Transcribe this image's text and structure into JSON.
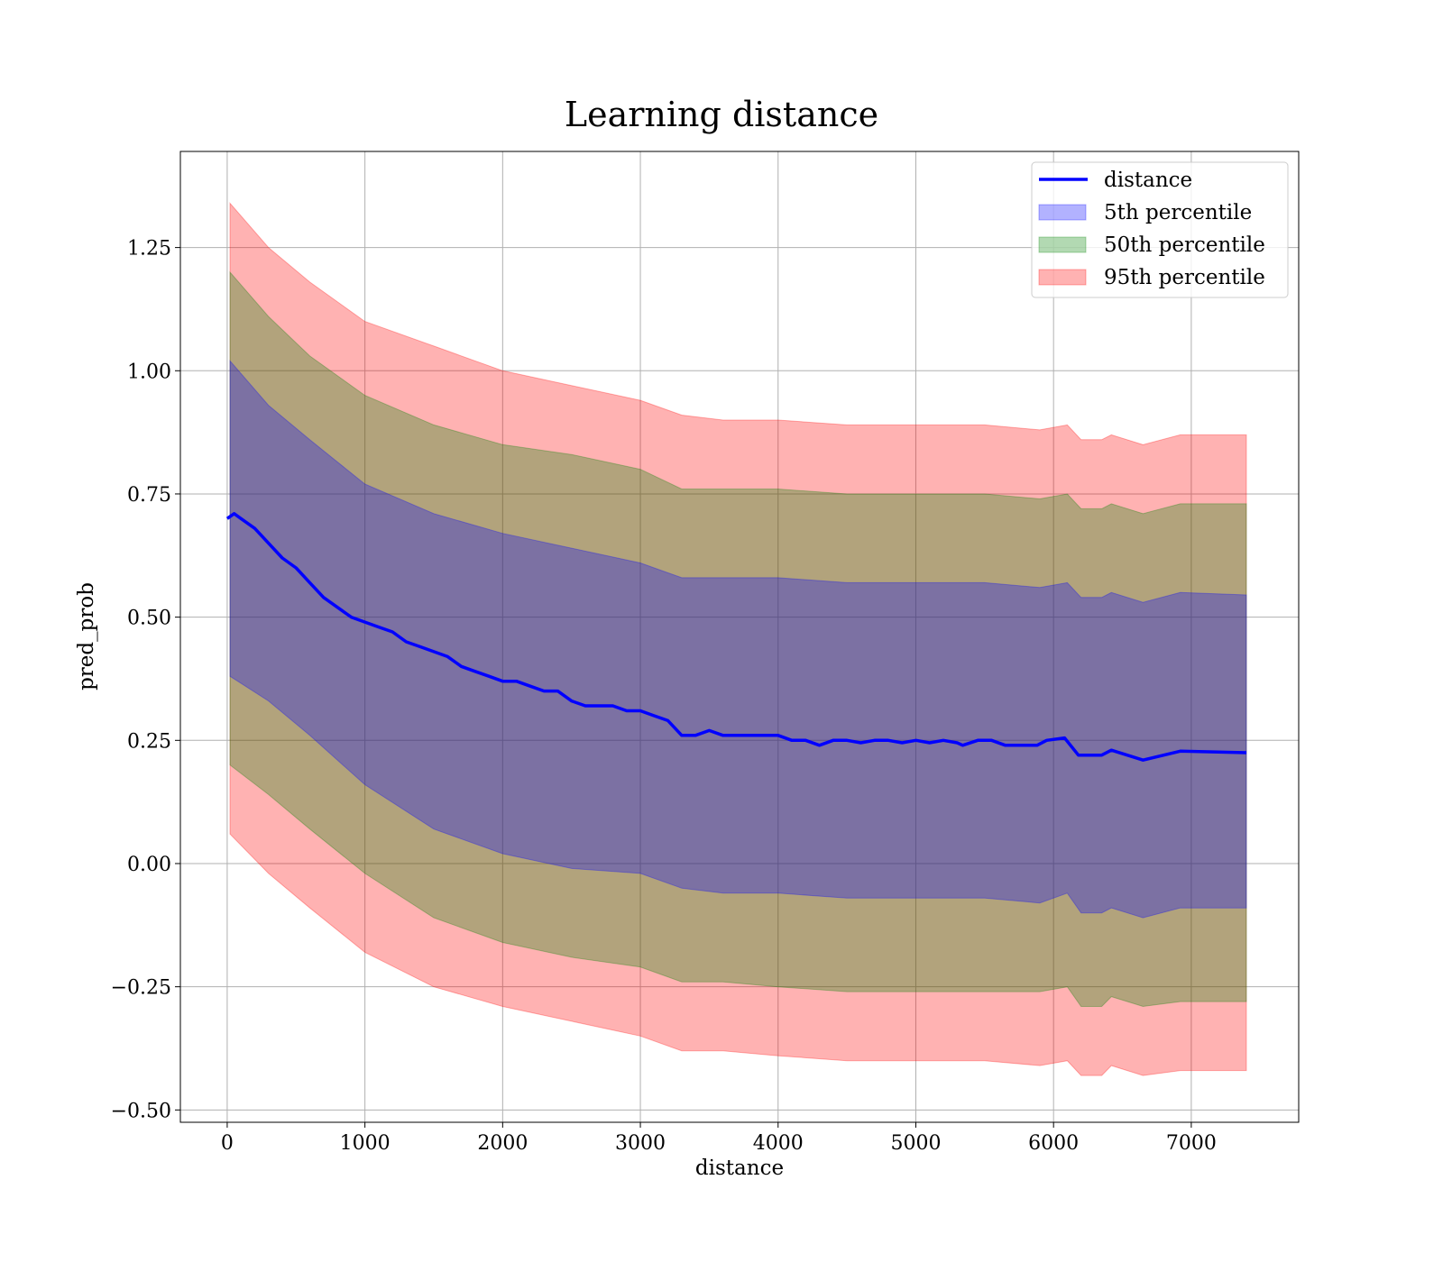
{
  "chart_data": {
    "type": "line",
    "title": "Learning distance",
    "xlabel": "distance",
    "ylabel": "pred_prob",
    "xlim": [
      -340,
      7780
    ],
    "ylim": [
      -0.525,
      1.445
    ],
    "xticks": [
      0,
      1000,
      2000,
      3000,
      4000,
      5000,
      6000,
      7000
    ],
    "xtick_labels": [
      "0",
      "1000",
      "2000",
      "3000",
      "4000",
      "5000",
      "6000",
      "7000"
    ],
    "yticks": [
      -0.5,
      -0.25,
      0.0,
      0.25,
      0.5,
      0.75,
      1.0,
      1.25
    ],
    "ytick_labels": [
      "−0.50",
      "−0.25",
      "0.00",
      "0.25",
      "0.50",
      "0.75",
      "1.00",
      "1.25"
    ],
    "grid": true,
    "legend_position": "top-right",
    "colors": {
      "line": "#0000ff",
      "band_5th": "#0000ff",
      "band_50th": "#008000",
      "band_95th": "#ff0000"
    },
    "series": [
      {
        "name": "distance",
        "kind": "line",
        "x": [
          0,
          50,
          100,
          200,
          300,
          400,
          500,
          600,
          700,
          800,
          900,
          1000,
          1100,
          1200,
          1300,
          1400,
          1500,
          1600,
          1700,
          1800,
          1900,
          2000,
          2100,
          2200,
          2300,
          2400,
          2500,
          2600,
          2700,
          2800,
          2900,
          3000,
          3100,
          3200,
          3300,
          3400,
          3500,
          3600,
          3700,
          3800,
          3900,
          4000,
          4100,
          4200,
          4300,
          4400,
          4500,
          4600,
          4700,
          4800,
          4900,
          5000,
          5100,
          5200,
          5300,
          5340,
          5450,
          5550,
          5650,
          5800,
          5880,
          5950,
          6080,
          6180,
          6350,
          6420,
          6650,
          6920,
          7400
        ],
        "y": [
          0.7,
          0.71,
          0.7,
          0.68,
          0.65,
          0.62,
          0.6,
          0.57,
          0.54,
          0.52,
          0.5,
          0.49,
          0.48,
          0.47,
          0.45,
          0.44,
          0.43,
          0.42,
          0.4,
          0.39,
          0.38,
          0.37,
          0.37,
          0.36,
          0.35,
          0.35,
          0.33,
          0.32,
          0.32,
          0.32,
          0.31,
          0.31,
          0.3,
          0.29,
          0.26,
          0.26,
          0.27,
          0.26,
          0.26,
          0.26,
          0.26,
          0.26,
          0.25,
          0.25,
          0.24,
          0.25,
          0.25,
          0.245,
          0.25,
          0.25,
          0.245,
          0.25,
          0.245,
          0.25,
          0.245,
          0.24,
          0.25,
          0.25,
          0.24,
          0.24,
          0.24,
          0.25,
          0.255,
          0.22,
          0.22,
          0.23,
          0.21,
          0.228,
          0.225
        ]
      },
      {
        "name": "5th percentile",
        "kind": "band",
        "x": [
          20,
          300,
          600,
          1000,
          1500,
          2000,
          2500,
          3000,
          3300,
          3600,
          4000,
          4500,
          5000,
          5500,
          5900,
          6100,
          6200,
          6350,
          6420,
          6650,
          6920,
          7400
        ],
        "lower": [
          0.38,
          0.33,
          0.26,
          0.16,
          0.07,
          0.02,
          -0.01,
          -0.02,
          -0.05,
          -0.06,
          -0.06,
          -0.07,
          -0.07,
          -0.07,
          -0.08,
          -0.06,
          -0.1,
          -0.1,
          -0.09,
          -0.11,
          -0.09,
          -0.09
        ],
        "upper": [
          1.02,
          0.93,
          0.86,
          0.77,
          0.71,
          0.67,
          0.64,
          0.61,
          0.58,
          0.58,
          0.58,
          0.57,
          0.57,
          0.57,
          0.56,
          0.57,
          0.54,
          0.54,
          0.55,
          0.53,
          0.55,
          0.545
        ]
      },
      {
        "name": "50th percentile",
        "kind": "band",
        "x": [
          20,
          300,
          600,
          1000,
          1500,
          2000,
          2500,
          3000,
          3300,
          3600,
          4000,
          4500,
          5000,
          5500,
          5900,
          6100,
          6200,
          6350,
          6420,
          6650,
          6920,
          7400
        ],
        "lower": [
          0.2,
          0.14,
          0.07,
          -0.02,
          -0.11,
          -0.16,
          -0.19,
          -0.21,
          -0.24,
          -0.24,
          -0.25,
          -0.26,
          -0.26,
          -0.26,
          -0.26,
          -0.25,
          -0.29,
          -0.29,
          -0.27,
          -0.29,
          -0.28,
          -0.28
        ],
        "upper": [
          1.2,
          1.11,
          1.03,
          0.95,
          0.89,
          0.85,
          0.83,
          0.8,
          0.76,
          0.76,
          0.76,
          0.75,
          0.75,
          0.75,
          0.74,
          0.75,
          0.72,
          0.72,
          0.73,
          0.71,
          0.73,
          0.73
        ]
      },
      {
        "name": "95th percentile",
        "kind": "band",
        "x": [
          20,
          300,
          600,
          1000,
          1500,
          2000,
          2500,
          3000,
          3300,
          3600,
          4000,
          4500,
          5000,
          5500,
          5900,
          6100,
          6200,
          6350,
          6420,
          6650,
          6920,
          7400
        ],
        "lower": [
          0.06,
          -0.02,
          -0.09,
          -0.18,
          -0.25,
          -0.29,
          -0.32,
          -0.35,
          -0.38,
          -0.38,
          -0.39,
          -0.4,
          -0.4,
          -0.4,
          -0.41,
          -0.4,
          -0.43,
          -0.43,
          -0.41,
          -0.43,
          -0.42,
          -0.42
        ],
        "upper": [
          1.34,
          1.25,
          1.18,
          1.1,
          1.05,
          1.0,
          0.97,
          0.94,
          0.91,
          0.9,
          0.9,
          0.89,
          0.89,
          0.89,
          0.88,
          0.89,
          0.86,
          0.86,
          0.87,
          0.85,
          0.87,
          0.87
        ]
      }
    ]
  }
}
